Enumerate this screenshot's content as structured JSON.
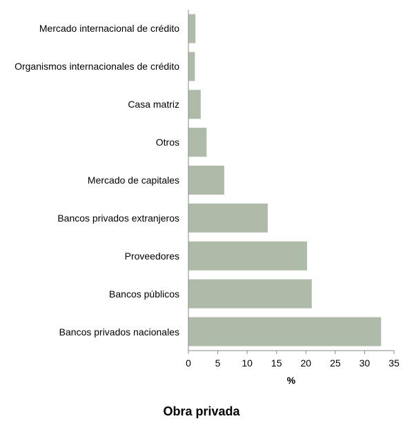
{
  "chart_data": {
    "type": "hbar",
    "title": "Obra privada",
    "x_label": "%",
    "categories": [
      "Mercado internacional de crédito",
      "Organismos internacionales de crédito",
      "Casa matriz",
      "Otros",
      "Mercado de capitales",
      "Bancos privados extranjeros",
      "Proveedores",
      "Bancos públicos",
      "Bancos privados nacionales"
    ],
    "values": [
      1.2,
      1.1,
      2.1,
      3.1,
      6.1,
      13.5,
      20.2,
      21.0,
      32.8
    ],
    "color": "#aebba8",
    "xlim": [
      0,
      35
    ],
    "xticks": [
      0,
      5,
      10,
      15,
      20,
      25,
      30,
      35
    ]
  }
}
